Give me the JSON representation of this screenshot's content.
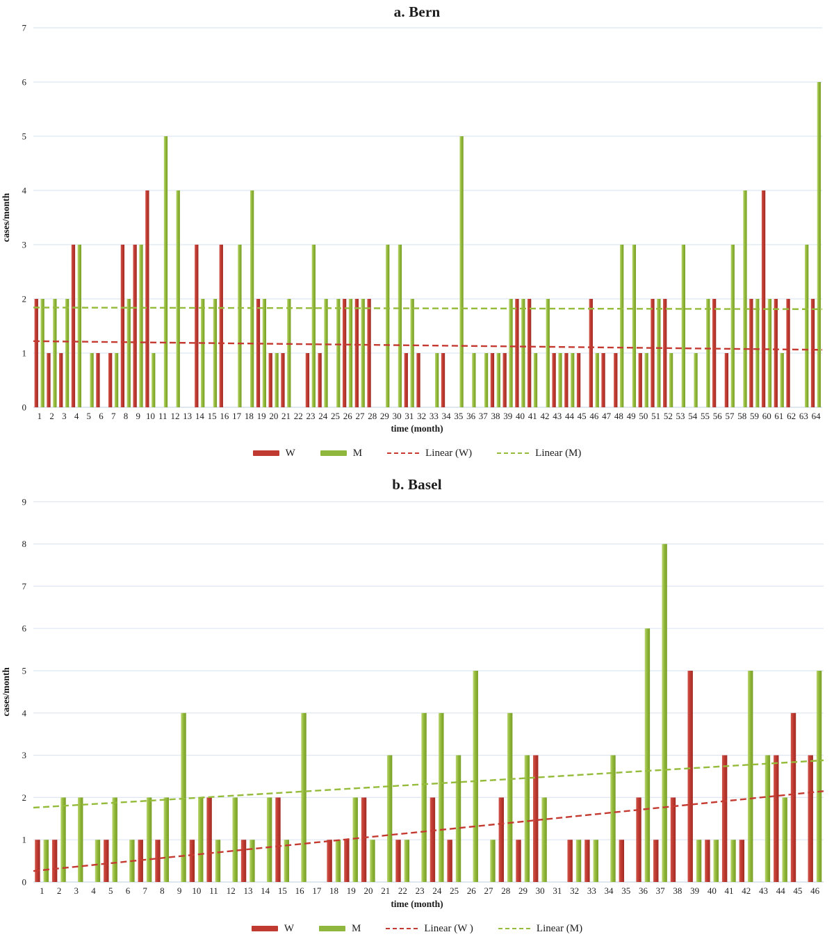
{
  "colors": {
    "w": "#c03a31",
    "m": "#8fb73d",
    "grid": "#dde6f2",
    "axis": "#c9d6e8",
    "text": "#1f1f1f"
  },
  "chart_data": [
    {
      "type": "bar",
      "title": "a. Bern",
      "xlabel": "time (month)",
      "ylabel": "cases/month",
      "ylim": [
        0,
        7
      ],
      "yticks": [
        0,
        1,
        2,
        3,
        4,
        5,
        6,
        7
      ],
      "grid": true,
      "legend_position": "bottom",
      "categories": [
        1,
        2,
        3,
        4,
        5,
        6,
        7,
        8,
        9,
        10,
        11,
        12,
        13,
        14,
        15,
        16,
        17,
        18,
        19,
        20,
        21,
        22,
        23,
        24,
        25,
        26,
        27,
        28,
        29,
        30,
        31,
        32,
        33,
        34,
        35,
        36,
        37,
        38,
        39,
        40,
        41,
        42,
        43,
        44,
        45,
        46,
        47,
        48,
        49,
        50,
        51,
        52,
        53,
        54,
        55,
        56,
        57,
        58,
        59,
        60,
        61,
        62,
        63,
        64
      ],
      "series": [
        {
          "name": "W",
          "color": "#c03a31",
          "values": [
            2,
            1,
            1,
            3,
            0,
            1,
            1,
            3,
            3,
            4,
            0,
            0,
            0,
            3,
            0,
            3,
            0,
            0,
            2,
            1,
            1,
            0,
            1,
            1,
            0,
            2,
            2,
            2,
            0,
            0,
            1,
            1,
            0,
            1,
            0,
            0,
            0,
            1,
            1,
            2,
            2,
            0,
            1,
            1,
            1,
            2,
            1,
            1,
            0,
            1,
            2,
            2,
            0,
            0,
            0,
            2,
            1,
            0,
            2,
            4,
            2,
            2,
            0,
            2
          ]
        },
        {
          "name": "M",
          "color": "#8fb73d",
          "values": [
            2,
            2,
            2,
            3,
            1,
            0,
            1,
            2,
            3,
            1,
            5,
            4,
            0,
            2,
            2,
            0,
            3,
            4,
            2,
            1,
            2,
            0,
            3,
            2,
            2,
            2,
            2,
            0,
            3,
            3,
            2,
            0,
            1,
            0,
            5,
            1,
            1,
            1,
            2,
            2,
            1,
            2,
            1,
            1,
            0,
            1,
            0,
            3,
            3,
            1,
            2,
            1,
            3,
            1,
            2,
            0,
            3,
            4,
            2,
            2,
            1,
            0,
            3,
            6
          ]
        }
      ],
      "trendlines": [
        {
          "name": "Linear (W)",
          "color": "#c43a31",
          "start": 1.22,
          "end": 1.06
        },
        {
          "name": "Linear (M)",
          "color": "#94bb3a",
          "start": 1.84,
          "end": 1.81
        }
      ],
      "legend": [
        "W",
        "M",
        "Linear (W)",
        "Linear (M)"
      ]
    },
    {
      "type": "bar",
      "title": "b. Basel",
      "xlabel": "time (month)",
      "ylabel": "cases/month",
      "ylim": [
        0,
        9
      ],
      "yticks": [
        0,
        1,
        2,
        3,
        4,
        5,
        6,
        7,
        8,
        9
      ],
      "grid": true,
      "legend_position": "bottom",
      "categories": [
        1,
        2,
        3,
        4,
        5,
        6,
        7,
        8,
        9,
        10,
        11,
        12,
        13,
        14,
        15,
        16,
        17,
        18,
        19,
        20,
        21,
        22,
        23,
        24,
        25,
        26,
        27,
        28,
        29,
        30,
        31,
        32,
        33,
        34,
        35,
        36,
        37,
        38,
        39,
        40,
        41,
        42,
        43,
        44,
        45,
        46
      ],
      "series": [
        {
          "name": "W",
          "color": "#c03a31",
          "values": [
            1,
            1,
            0,
            0,
            1,
            0,
            1,
            1,
            0,
            1,
            2,
            0,
            1,
            0,
            2,
            0,
            0,
            1,
            1,
            2,
            0,
            1,
            0,
            2,
            1,
            0,
            0,
            2,
            1,
            3,
            0,
            1,
            1,
            0,
            1,
            2,
            1,
            2,
            5,
            1,
            3,
            1,
            0,
            3,
            4,
            3
          ]
        },
        {
          "name": "M",
          "color": "#8fb73d",
          "values": [
            1,
            2,
            2,
            1,
            2,
            1,
            2,
            2,
            4,
            2,
            1,
            2,
            1,
            2,
            1,
            4,
            0,
            1,
            2,
            1,
            3,
            1,
            4,
            4,
            3,
            5,
            1,
            4,
            3,
            2,
            0,
            1,
            1,
            3,
            0,
            6,
            8,
            0,
            1,
            1,
            1,
            5,
            3,
            2,
            0,
            5
          ]
        }
      ],
      "trendlines": [
        {
          "name": "Linear (W )",
          "color": "#c43a31",
          "start": 0.26,
          "end": 2.15
        },
        {
          "name": "Linear (M)",
          "color": "#94bb3a",
          "start": 1.76,
          "end": 2.88
        }
      ],
      "legend": [
        "W",
        "M",
        "Linear (W )",
        "Linear (M)"
      ]
    }
  ]
}
